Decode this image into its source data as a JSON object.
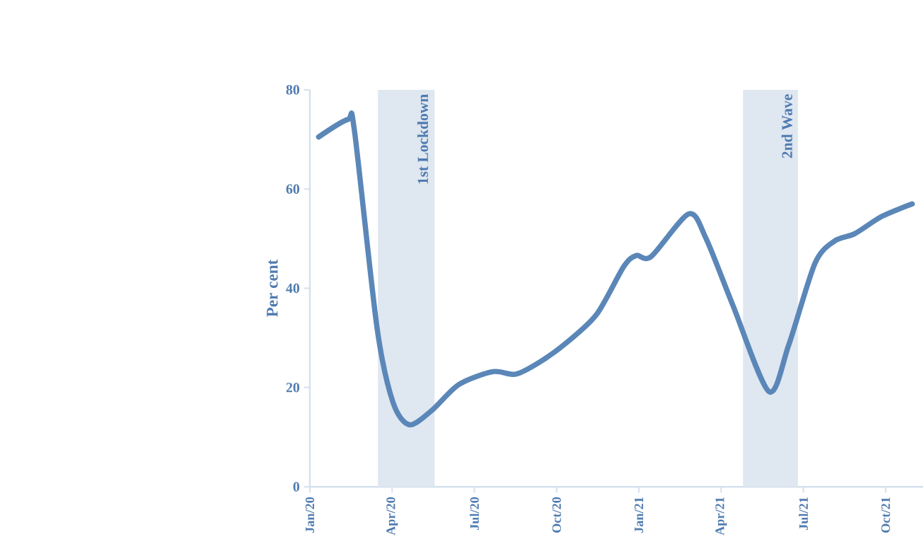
{
  "chart_data": {
    "type": "line",
    "ylabel": "Per cent",
    "x": [
      "2020-01-11",
      "2020-02-12",
      "2020-02-19",
      "2020-03-15",
      "2020-04-02",
      "2020-04-20",
      "2020-05-15",
      "2020-06-14",
      "2020-07-22",
      "2020-08-17",
      "2020-09-14",
      "2020-10-14",
      "2020-11-15",
      "2020-12-15",
      "2020-12-29",
      "2021-01-15",
      "2021-02-24",
      "2021-03-15",
      "2021-04-14",
      "2021-05-24",
      "2021-06-15",
      "2021-07-14",
      "2021-08-05",
      "2021-08-28",
      "2021-09-27",
      "2021-10-31"
    ],
    "values": [
      70.5,
      74,
      72,
      32,
      17,
      12.5,
      15.4,
      20.6,
      23.2,
      22.7,
      25.3,
      29.3,
      34.8,
      44.4,
      46.6,
      46.4,
      55,
      50,
      36.5,
      19.2,
      28.6,
      45,
      49.5,
      51,
      54.5,
      57
    ],
    "color": "#5b87b8",
    "xlim": [
      "2020-01-01",
      "2021-11-12"
    ],
    "xticks": [
      {
        "value": "2020-01",
        "label": "Jan/20"
      },
      {
        "value": "2020-04",
        "label": "Apr/20"
      },
      {
        "value": "2020-07",
        "label": "Jul/20"
      },
      {
        "value": "2020-10",
        "label": "Oct/20"
      },
      {
        "value": "2021-01",
        "label": "Jan/21"
      },
      {
        "value": "2021-04",
        "label": "Apr/21"
      },
      {
        "value": "2021-07",
        "label": "Jul/21"
      },
      {
        "value": "2021-10",
        "label": "Oct/21"
      }
    ],
    "ylim": [
      0,
      80
    ],
    "yticks": [
      0,
      20,
      40,
      60,
      80
    ],
    "bands": [
      {
        "axis": "x",
        "from": "2020-03-16",
        "to": "2020-05-18",
        "label": "1st Lockdown",
        "color": "#dfe7f1"
      },
      {
        "axis": "x",
        "from": "2021-04-25",
        "to": "2021-06-25",
        "label": "2nd Wave",
        "color": "#dfe7f1"
      }
    ]
  }
}
